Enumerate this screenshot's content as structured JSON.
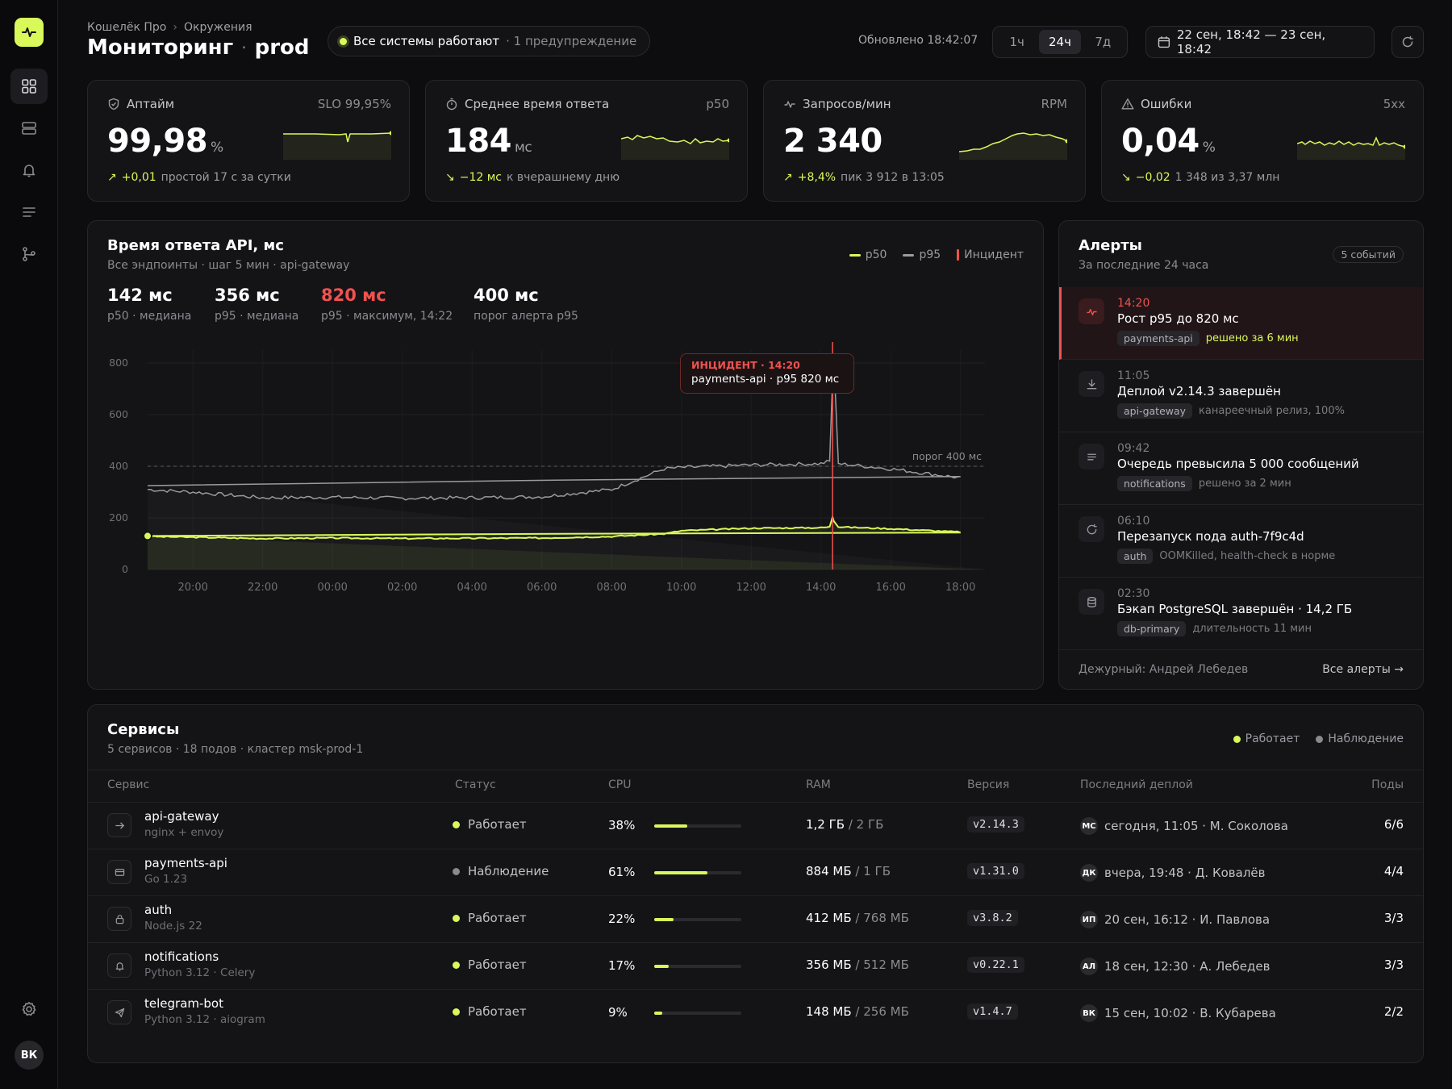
{
  "breadcrumb": {
    "org": "Кошелёк Про",
    "section": "Окружения"
  },
  "title": {
    "main": "Мониторинг",
    "sep": "·",
    "env": "prod"
  },
  "status": {
    "text": "Все системы работают",
    "warning": "· 1 предупреждение",
    "color": "#d9f85a"
  },
  "updated": "Обновлено 18:42:07",
  "ranges": [
    {
      "label": "1ч"
    },
    {
      "label": "24ч",
      "active": true
    },
    {
      "label": "7д"
    }
  ],
  "date_range": "22 сен, 18:42 — 23 сен, 18:42",
  "kpis": [
    {
      "title": "Аптайм",
      "badge": "SLO 99,95%",
      "value": "99,98",
      "unit": "%",
      "delta": "+0,01",
      "delta_dir": "up",
      "note": "простой 17 с за сутки",
      "icon": "shield-icon"
    },
    {
      "title": "Среднее время ответа",
      "badge": "p50",
      "value": "184",
      "unit": "мс",
      "delta": "−12 мс",
      "delta_dir": "down",
      "note": "к вчерашнему дню",
      "icon": "stopwatch-icon"
    },
    {
      "title": "Запросов/мин",
      "badge": "RPM",
      "value": "2 340",
      "unit": "",
      "delta": "+8,4%",
      "delta_dir": "up",
      "note": "пик 3 912 в 13:05",
      "icon": "activity-icon"
    },
    {
      "title": "Ошибки",
      "badge": "5xx",
      "value": "0,04",
      "unit": "%",
      "delta": "−0,02",
      "delta_dir": "down",
      "note": "1 348 из 3,37 млн",
      "icon": "warning-icon"
    }
  ],
  "chart": {
    "title": "Время ответа API, мс",
    "subtitle": "Все эндпоинты · шаг 5 мин · api-gateway",
    "legend": {
      "p50": "p50",
      "p95": "p95",
      "incident": "Инцидент"
    },
    "stats": [
      {
        "value": "142 мс",
        "label": "p50 · медиана"
      },
      {
        "value": "356 мс",
        "label": "p95 · медиана"
      },
      {
        "value": "820 мс",
        "label": "p95 · максимум, 14:22",
        "highlight": true
      },
      {
        "value": "400 мс",
        "label": "порог алерта p95"
      }
    ],
    "threshold_label": "порог 400 мс",
    "tooltip": {
      "title": "ИНЦИДЕНТ · 14:20",
      "body": "payments-api · p95 820 мс"
    }
  },
  "chart_data": {
    "type": "area",
    "x": [
      "18:42",
      "20:00",
      "22:00",
      "00:00",
      "02:00",
      "04:00",
      "06:00",
      "08:00",
      "09:30",
      "10:00",
      "12:00",
      "14:00",
      "14:15",
      "14:20",
      "14:22",
      "14:30",
      "16:00",
      "18:00",
      "18:42"
    ],
    "x_ticks": [
      "20:00",
      "22:00",
      "00:00",
      "02:00",
      "04:00",
      "06:00",
      "08:00",
      "10:00",
      "12:00",
      "14:00",
      "16:00",
      "18:00"
    ],
    "y_ticks": [
      0,
      200,
      400,
      600,
      800
    ],
    "ylim": [
      0,
      850
    ],
    "series": [
      {
        "name": "p50",
        "color": "#d9f85a",
        "values": [
          128,
          125,
          120,
          122,
          120,
          121,
          122,
          128,
          138,
          150,
          160,
          162,
          165,
          205,
          190,
          165,
          158,
          145,
          130
        ]
      },
      {
        "name": "p95",
        "color": "#9a9a9f",
        "values": [
          310,
          300,
          278,
          280,
          276,
          278,
          282,
          310,
          390,
          395,
          405,
          410,
          420,
          740,
          820,
          410,
          390,
          355,
          325
        ]
      }
    ],
    "threshold": 400,
    "incident_x": "14:20",
    "grid": true
  },
  "alerts": {
    "title": "Алерты",
    "subtitle": "За последние 24 часа",
    "count": "5 событий",
    "items": [
      {
        "time": "14:20",
        "title": "Рост p95 до 820 мс",
        "tag": "payments-api",
        "note": "решено за 6 мин",
        "highlight": true,
        "icon": "activity-icon"
      },
      {
        "time": "11:05",
        "title": "Деплой v2.14.3 завершён",
        "tag": "api-gateway",
        "note": "канареечный релиз, 100%",
        "icon": "download-icon"
      },
      {
        "time": "09:42",
        "title": "Очередь превысила 5 000 сообщений",
        "tag": "notifications",
        "note": "решено за 2 мин",
        "icon": "list-icon"
      },
      {
        "time": "06:10",
        "title": "Перезапуск пода auth-7f9c4d",
        "tag": "auth",
        "note": "OOMKilled, health-check в норме",
        "icon": "refresh-icon"
      },
      {
        "time": "02:30",
        "title": "Бэкап PostgreSQL завершён · 14,2 ГБ",
        "tag": "db-primary",
        "note": "длительность 11 мин",
        "icon": "database-icon"
      }
    ],
    "oncall": "Дежурный: Андрей Лебедев",
    "all_link": "Все алерты →"
  },
  "services": {
    "title": "Сервисы",
    "subtitle": "5 сервисов · 18 подов · кластер msk-prod-1",
    "legend": {
      "ok": "Работает",
      "watch": "Наблюдение"
    },
    "columns": [
      "Сервис",
      "Статус",
      "CPU",
      "RAM",
      "Версия",
      "Последний деплой",
      "Поды"
    ],
    "rows": [
      {
        "name": "api-gateway",
        "sub": "nginx + envoy",
        "status": "Работает",
        "status_color": "#d9f85a",
        "cpu": "38%",
        "cpu_frac": 0.38,
        "ram_used": "1,2 ГБ",
        "ram_total": " / 2 ГБ",
        "version": "v2.14.3",
        "ini": "МС",
        "deploy": "сегодня, 11:05 · М. Соколова",
        "pods": "6/6",
        "icon": "arrow-right-icon"
      },
      {
        "name": "payments-api",
        "sub": "Go 1.23",
        "status": "Наблюдение",
        "status_color": "#8a8a90",
        "cpu": "61%",
        "cpu_frac": 0.61,
        "ram_used": "884 МБ",
        "ram_total": " / 1 ГБ",
        "version": "v1.31.0",
        "ini": "ДК",
        "deploy": "вчера, 19:48 · Д. Ковалёв",
        "pods": "4/4",
        "icon": "card-icon"
      },
      {
        "name": "auth",
        "sub": "Node.js 22",
        "status": "Работает",
        "status_color": "#d9f85a",
        "cpu": "22%",
        "cpu_frac": 0.22,
        "ram_used": "412 МБ",
        "ram_total": " / 768 МБ",
        "version": "v3.8.2",
        "ini": "ИП",
        "deploy": "20 сен, 16:12 · И. Павлова",
        "pods": "3/3",
        "icon": "lock-icon"
      },
      {
        "name": "notifications",
        "sub": "Python 3.12 · Celery",
        "status": "Работает",
        "status_color": "#d9f85a",
        "cpu": "17%",
        "cpu_frac": 0.17,
        "ram_used": "356 МБ",
        "ram_total": " / 512 МБ",
        "version": "v0.22.1",
        "ini": "АЛ",
        "deploy": "18 сен, 12:30 · А. Лебедев",
        "pods": "3/3",
        "icon": "bell-icon"
      },
      {
        "name": "telegram-bot",
        "sub": "Python 3.12 · aiogram",
        "status": "Работает",
        "status_color": "#d9f85a",
        "cpu": "9%",
        "cpu_frac": 0.09,
        "ram_used": "148 МБ",
        "ram_total": " / 256 МБ",
        "version": "v1.4.7",
        "ini": "ВК",
        "deploy": "15 сен, 10:02 · В. Кубарева",
        "pods": "2/2",
        "icon": "send-icon"
      }
    ]
  },
  "user": {
    "initials": "ВК"
  },
  "colors": {
    "accent": "#d9f85a",
    "incident": "#f0524f",
    "bg": "#0d0d0f",
    "panel": "#141417"
  }
}
